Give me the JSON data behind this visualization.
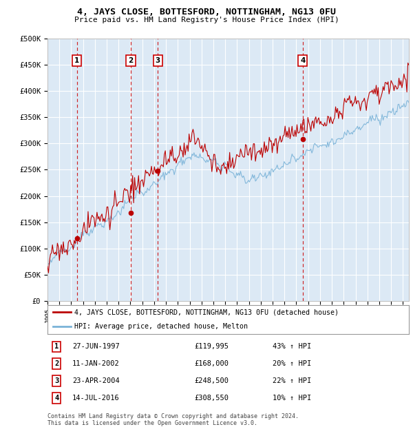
{
  "title": "4, JAYS CLOSE, BOTTESFORD, NOTTINGHAM, NG13 0FU",
  "subtitle": "Price paid vs. HM Land Registry's House Price Index (HPI)",
  "ylim": [
    0,
    500000
  ],
  "yticks": [
    0,
    50000,
    100000,
    150000,
    200000,
    250000,
    300000,
    350000,
    400000,
    450000,
    500000
  ],
  "ytick_labels": [
    "£0",
    "£50K",
    "£100K",
    "£150K",
    "£200K",
    "£250K",
    "£300K",
    "£350K",
    "£400K",
    "£450K",
    "£500K"
  ],
  "year_start": 1995.0,
  "year_end": 2025.5,
  "plot_bg_color": "#dce9f5",
  "grid_color": "#ffffff",
  "red_line_color": "#bb0000",
  "blue_line_color": "#7ab3d8",
  "sales": [
    {
      "label": "1",
      "date_num": 1997.49,
      "price": 119995,
      "hpi_pct": 43,
      "date_str": "27-JUN-1997"
    },
    {
      "label": "2",
      "date_num": 2002.03,
      "price": 168000,
      "hpi_pct": 20,
      "date_str": "11-JAN-2002"
    },
    {
      "label": "3",
      "date_num": 2004.31,
      "price": 248500,
      "hpi_pct": 22,
      "date_str": "23-APR-2004"
    },
    {
      "label": "4",
      "date_num": 2016.54,
      "price": 308550,
      "hpi_pct": 10,
      "date_str": "14-JUL-2016"
    }
  ],
  "legend_line1": "4, JAYS CLOSE, BOTTESFORD, NOTTINGHAM, NG13 0FU (detached house)",
  "legend_line2": "HPI: Average price, detached house, Melton",
  "footnote1": "Contains HM Land Registry data © Crown copyright and database right 2024.",
  "footnote2": "This data is licensed under the Open Government Licence v3.0."
}
